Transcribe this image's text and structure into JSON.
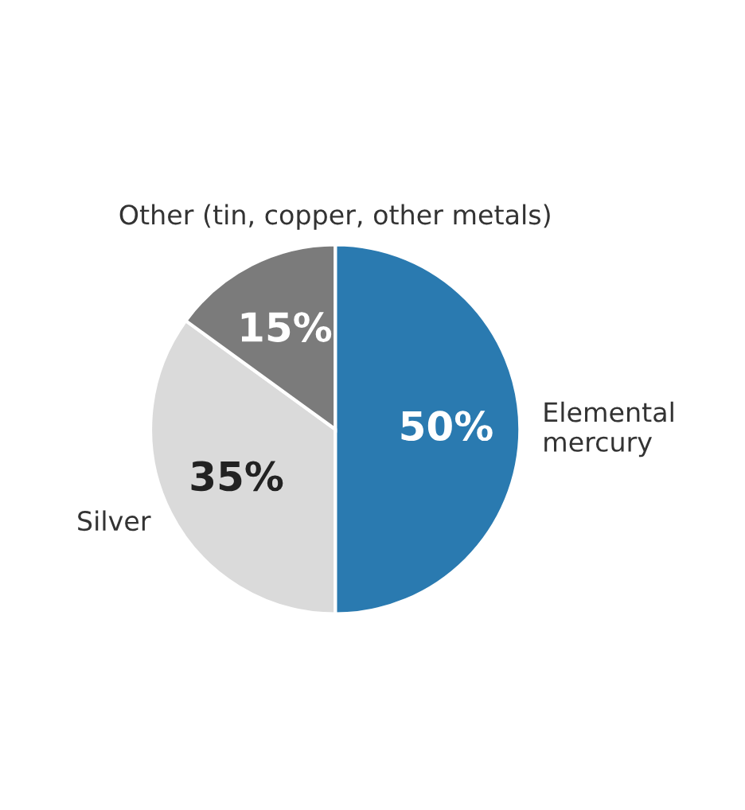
{
  "chart_data": {
    "type": "pie",
    "categories": [
      "Elemental mercury",
      "Silver",
      "Other (tin, copper, other metals)"
    ],
    "values": [
      50,
      35,
      15
    ],
    "colors": [
      "#2a7ab0",
      "#dadada",
      "#7b7b7b"
    ],
    "value_labels": [
      "50%",
      "35%",
      "15%"
    ]
  }
}
